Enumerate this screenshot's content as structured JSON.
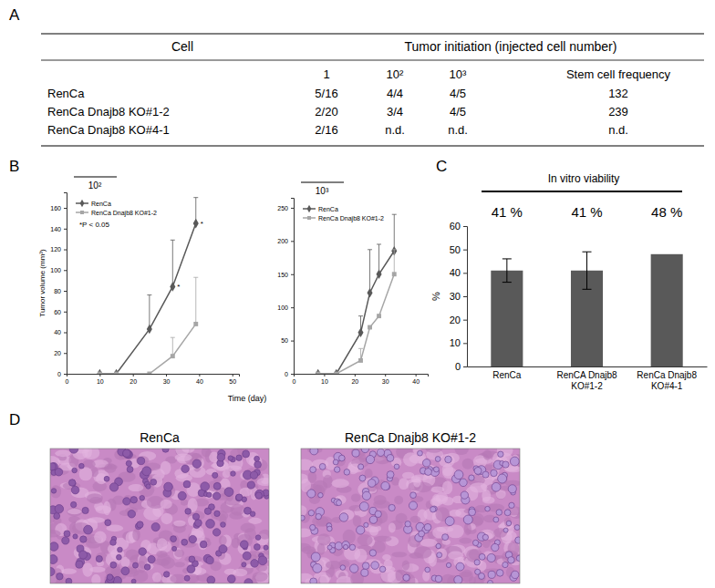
{
  "panel_labels": [
    "A",
    "B",
    "C",
    "D"
  ],
  "table": {
    "header": [
      "Cell",
      "Tumor initiation (injected cell number)"
    ],
    "subheader": [
      "1",
      "10²",
      "10³",
      "Stem cell frequency"
    ],
    "rows": [
      [
        "RenCa",
        "5/16",
        "4/4",
        "4/5",
        "132"
      ],
      [
        "RenCa Dnajb8 KO#1-2",
        "2/20",
        "3/4",
        "4/5",
        "239"
      ],
      [
        "RenCa Dnajb8 KO#4-1",
        "2/16",
        "n.d.",
        "n.d.",
        "n.d."
      ]
    ]
  },
  "chart_data": [
    {
      "type": "line",
      "title": "10²",
      "xlabel": "Time (day)",
      "ylabel": "Tumor volume (mm³)",
      "x": [
        10,
        15,
        25,
        32,
        39
      ],
      "series": [
        {
          "name": "RenCa",
          "color": "#595959",
          "marker": "diamond",
          "values": [
            0,
            0,
            43,
            84,
            145
          ],
          "errors": [
            null,
            null,
            33,
            45,
            25
          ]
        },
        {
          "name": "RenCa Dnajb8 KO#1-2",
          "color": "#a6a6a6",
          "marker": "square",
          "values": [
            0,
            0,
            0,
            17,
            48
          ],
          "errors": [
            null,
            null,
            null,
            18,
            45
          ]
        }
      ],
      "annotations": [
        {
          "text": "*P < 0.05"
        },
        {
          "text": "*",
          "x": 32
        },
        {
          "text": "*",
          "x": 39
        }
      ],
      "xlim": [
        0,
        52
      ],
      "xticks": [
        0,
        10,
        20,
        30,
        40,
        50
      ],
      "ylim": [
        0,
        175
      ],
      "yticks": [
        0,
        20,
        40,
        60,
        80,
        100,
        120,
        140,
        160
      ],
      "legend": "upper left"
    },
    {
      "type": "line",
      "title": "10³",
      "x": [
        8,
        14,
        22,
        25,
        28,
        33
      ],
      "series": [
        {
          "name": "RenCa",
          "color": "#595959",
          "marker": "diamond",
          "values": [
            0,
            0,
            62,
            122,
            150,
            185
          ],
          "errors": [
            null,
            null,
            25,
            65,
            45,
            55
          ]
        },
        {
          "name": "RenCa Dnajb8 KO#1-2",
          "color": "#a6a6a6",
          "marker": "square",
          "values": [
            0,
            0,
            20,
            70,
            87,
            150
          ],
          "errors": [
            null,
            null,
            18,
            null,
            null,
            37
          ]
        }
      ],
      "xlim": [
        0,
        44
      ],
      "xticks": [
        0,
        10,
        20,
        30,
        40
      ],
      "ylim": [
        0,
        265
      ],
      "yticks": [
        0,
        50,
        100,
        150,
        200,
        250
      ],
      "legend": "upper left"
    },
    {
      "type": "bar",
      "title": "In vitro viability",
      "ylabel": "%",
      "categories": [
        "RenCa",
        "RenCA Dnajb8 KO#1-2",
        "RenCa Dnajb8 KO#4-1"
      ],
      "values": [
        41,
        41,
        48
      ],
      "value_labels": [
        "41 %",
        "41 %",
        "48 %"
      ],
      "errors": [
        5,
        8,
        null
      ],
      "data_labels": true,
      "color": "#595959",
      "ylim": [
        0,
        60
      ],
      "yticks": [
        0,
        10,
        20,
        30,
        40,
        50,
        60
      ]
    }
  ],
  "images": [
    {
      "caption": "RenCa"
    },
    {
      "caption": "RenCa Dnajb8 KO#1-2"
    }
  ]
}
